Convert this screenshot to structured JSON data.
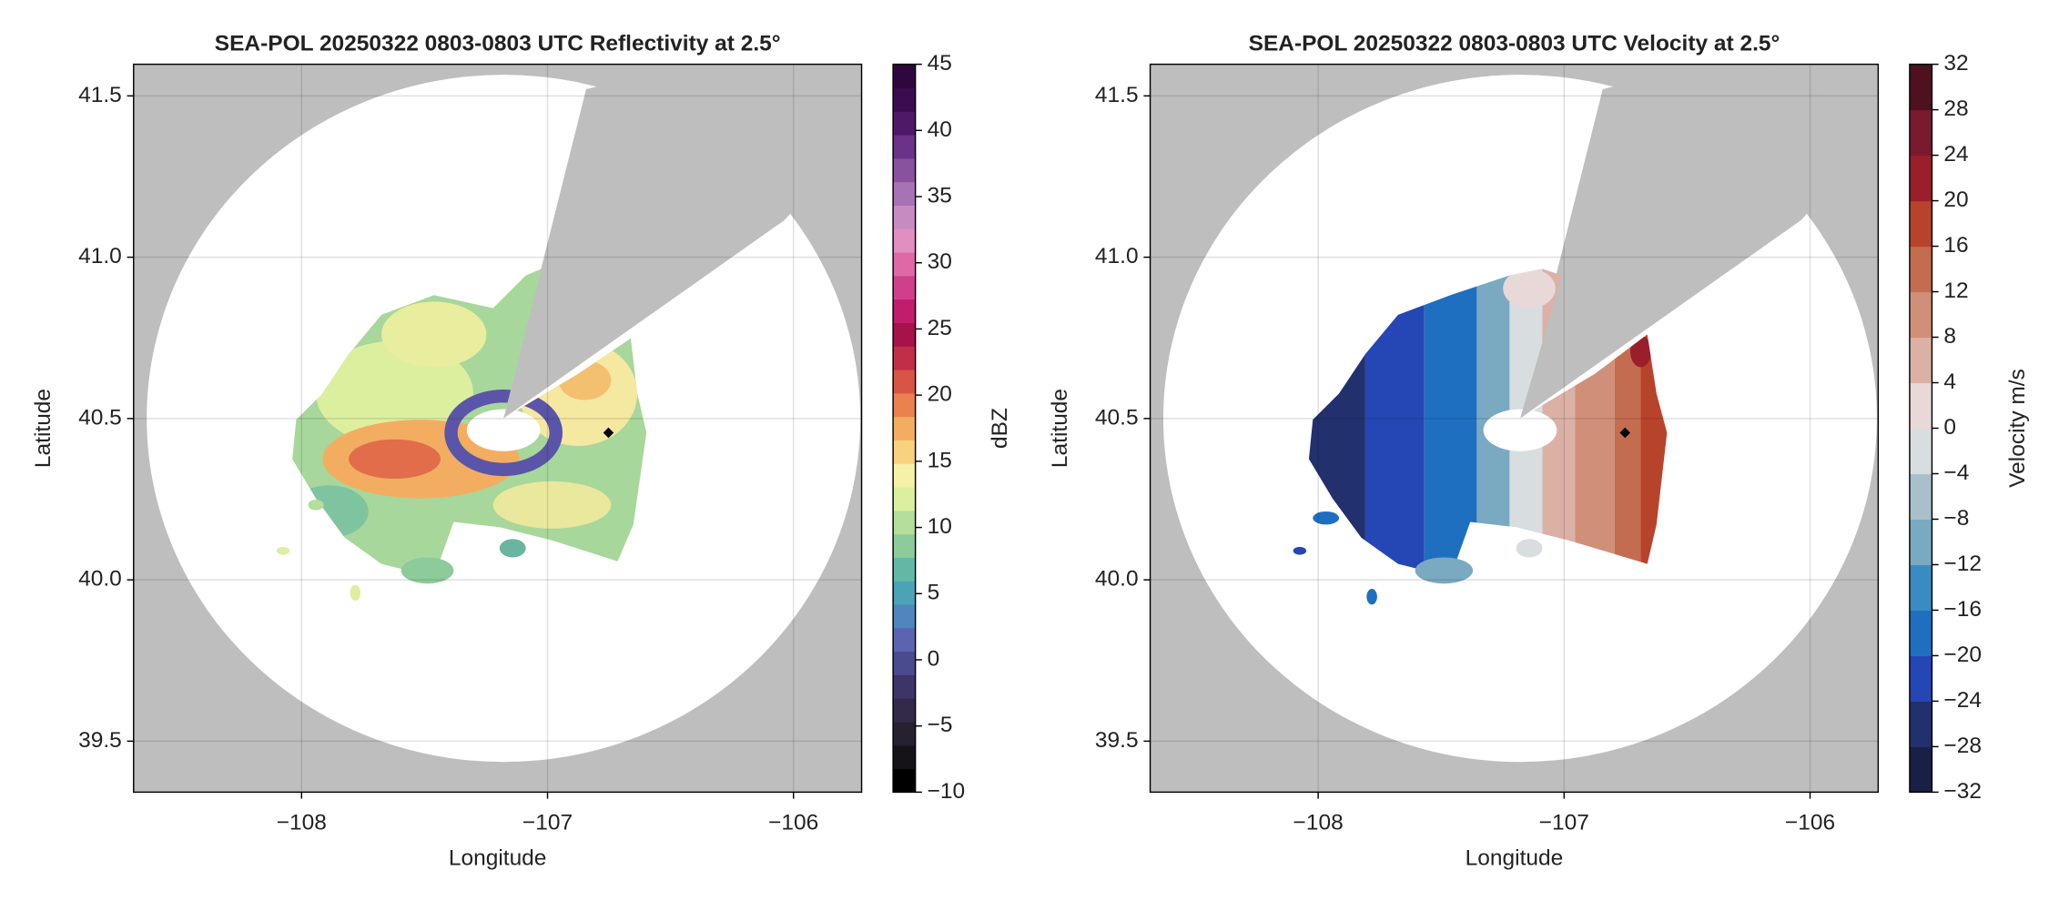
{
  "chart_data": [
    {
      "type": "map",
      "title": "SEA-POL 20250322 0803-0803 UTC Reflectivity at 2.5°",
      "xlabel": "Longitude",
      "ylabel": "Latitude",
      "xlim": [
        -108.683,
        -105.723
      ],
      "ylim": [
        39.342,
        41.598
      ],
      "xticks": [
        {
          "value": -108,
          "label": "−108"
        },
        {
          "value": -107,
          "label": "−107"
        },
        {
          "value": -106,
          "label": "−106"
        }
      ],
      "yticks": [
        39.5,
        {
          "value": 40.0,
          "label": "40.0"
        },
        40.5,
        {
          "value": 41.0,
          "label": "41.0"
        },
        41.5
      ],
      "grid": true,
      "colorbar": {
        "label": "dBZ",
        "clim": [
          -10,
          45
        ],
        "ticks": [
          {
            "value": -10,
            "label": "−10"
          },
          {
            "value": -5,
            "label": "−5"
          },
          0,
          5,
          10,
          15,
          20,
          25,
          30,
          35,
          40,
          45
        ],
        "colors": [
          "#000000",
          "#151218",
          "#262030",
          "#332a4a",
          "#3d3468",
          "#4a4a8e",
          "#5a64b0",
          "#4f86bd",
          "#4ba3b6",
          "#62b8a4",
          "#8ecb9a",
          "#b5dd9b",
          "#dcef9f",
          "#f5f1a6",
          "#f8d27e",
          "#f3ad61",
          "#e9824e",
          "#d85546",
          "#c22e48",
          "#a7124a",
          "#c21c6c",
          "#d0408a",
          "#de69a6",
          "#e38ec0",
          "#c68cc2",
          "#a873b5",
          "#8a519f",
          "#6c3188",
          "#4f1868",
          "#3b0c50",
          "#2e073f"
        ]
      }
    },
    {
      "type": "map",
      "title": "SEA-POL 20250322 0803-0803 UTC Velocity at 2.5°",
      "xlabel": "Longitude",
      "ylabel": "Latitude",
      "xlim": [
        -108.683,
        -105.723
      ],
      "ylim": [
        39.342,
        41.598
      ],
      "xticks": [
        {
          "value": -108,
          "label": "−108"
        },
        {
          "value": -107,
          "label": "−107"
        },
        {
          "value": -106,
          "label": "−106"
        }
      ],
      "yticks": [
        39.5,
        {
          "value": 40.0,
          "label": "40.0"
        },
        40.5,
        {
          "value": 41.0,
          "label": "41.0"
        },
        41.5
      ],
      "grid": true,
      "colorbar": {
        "label": "Velocity m/s",
        "clim": [
          -32,
          32
        ],
        "ticks": [
          {
            "value": -32,
            "label": "−32"
          },
          {
            "value": -28,
            "label": "−28"
          },
          {
            "value": -24,
            "label": "−24"
          },
          {
            "value": -20,
            "label": "−20"
          },
          {
            "value": -16,
            "label": "−16"
          },
          {
            "value": -12,
            "label": "−12"
          },
          {
            "value": -8,
            "label": "−8"
          },
          {
            "value": -4,
            "label": "−4"
          },
          0,
          4,
          8,
          12,
          16,
          20,
          24,
          28,
          32
        ],
        "colors": [
          "#1a1f45",
          "#23306e",
          "#2447b5",
          "#1f6fc0",
          "#3a8bc1",
          "#7aa9c2",
          "#a9c0cb",
          "#d8dde0",
          "#e8d8d8",
          "#dbb1a6",
          "#d08f78",
          "#c46c4f",
          "#b8432b",
          "#9a1f2a",
          "#7a1a2e",
          "#4f1120"
        ]
      }
    }
  ]
}
